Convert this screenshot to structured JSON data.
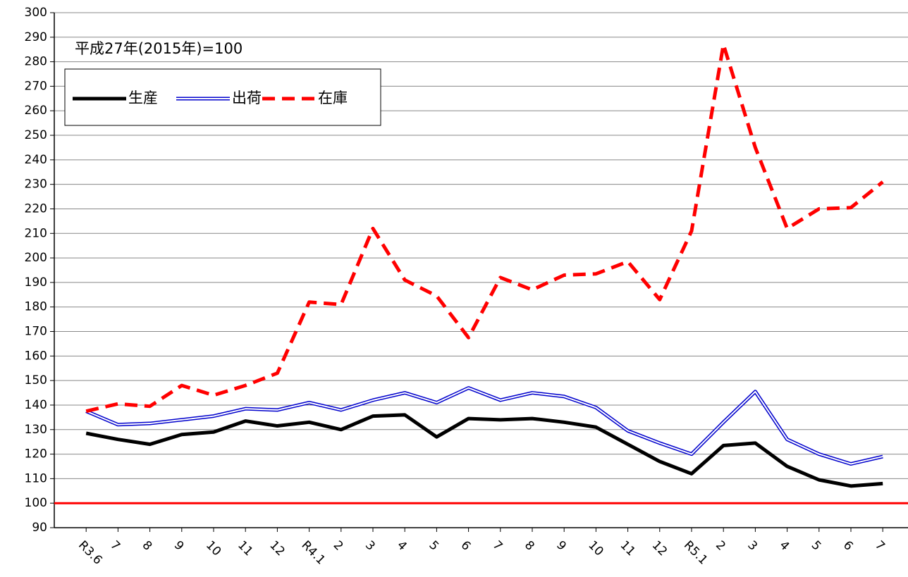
{
  "chart_data": {
    "type": "line",
    "annotation": "平成27年(2015年)=100",
    "categories": [
      "R3.6",
      "7",
      "8",
      "9",
      "10",
      "11",
      "12",
      "R4.1",
      "2",
      "3",
      "4",
      "5",
      "6",
      "7",
      "8",
      "9",
      "10",
      "11",
      "12",
      "R5.1",
      "2",
      "3",
      "4",
      "5",
      "6",
      "7"
    ],
    "series": [
      {
        "name": "生産",
        "color": "#000000",
        "style": "solid",
        "values": [
          128.5,
          126,
          124,
          128,
          129,
          133.5,
          131.5,
          133,
          130,
          135.5,
          136,
          127,
          134.5,
          134,
          134.5,
          133,
          131,
          124,
          117,
          112,
          123.5,
          124.5,
          115,
          109.5,
          107,
          108
        ]
      },
      {
        "name": "出荷",
        "color": "#0000cc",
        "style": "double",
        "values": [
          137.5,
          132,
          132.5,
          134,
          135.5,
          138.5,
          138,
          141,
          138,
          142,
          145,
          141,
          147,
          142,
          145,
          143.5,
          139,
          129.5,
          124.5,
          120,
          133,
          145.5,
          126,
          120,
          116,
          119
        ]
      },
      {
        "name": "在庫",
        "color": "#ff0000",
        "style": "dashed",
        "values": [
          137.5,
          140.5,
          139.5,
          148,
          144,
          148,
          153,
          182,
          181,
          212,
          191,
          184.5,
          167.5,
          192,
          187,
          193,
          193.5,
          198.5,
          183,
          211,
          287,
          245,
          212,
          220,
          220.5,
          231
        ]
      }
    ],
    "reference_line": 100,
    "reference_color": "#ff0000",
    "ylim": [
      90,
      300
    ],
    "yticks": [
      90,
      100,
      110,
      120,
      130,
      140,
      150,
      160,
      170,
      180,
      190,
      200,
      210,
      220,
      230,
      240,
      250,
      260,
      270,
      280,
      290,
      300
    ],
    "grid": true
  }
}
